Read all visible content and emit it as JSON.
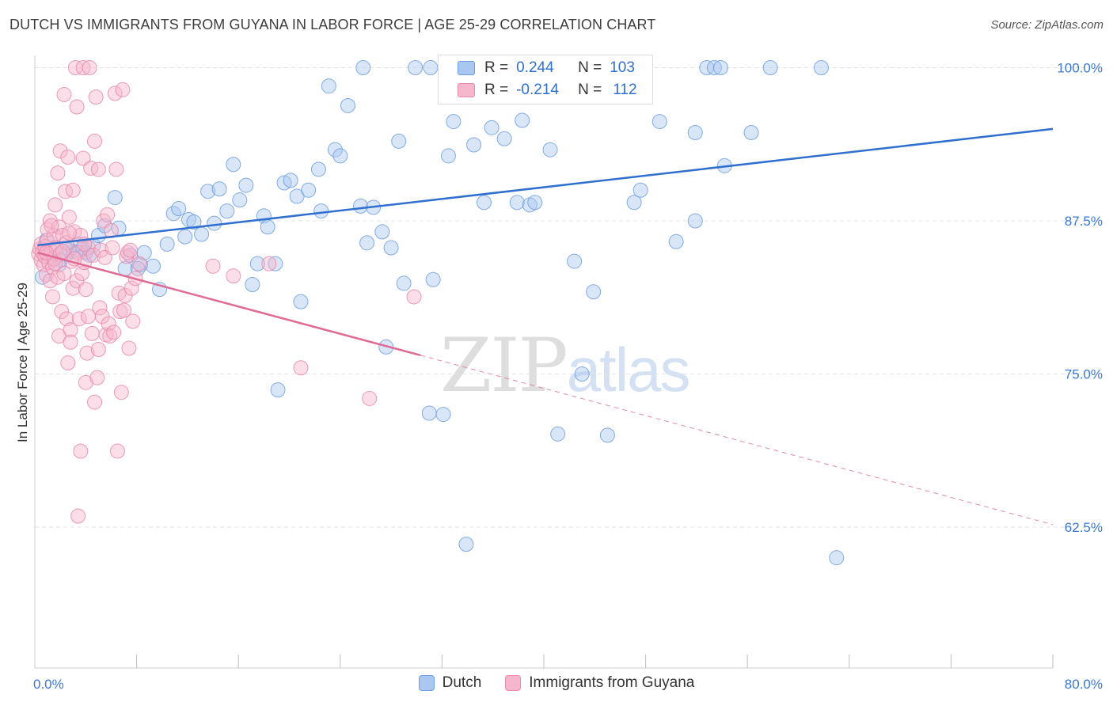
{
  "title": "DUTCH VS IMMIGRANTS FROM GUYANA IN LABOR FORCE | AGE 25-29 CORRELATION CHART",
  "source": "Source: ZipAtlas.com",
  "watermark": {
    "zip": "ZIP",
    "atlas": "atlas"
  },
  "colors": {
    "dutch_fill": "#a9c7f0",
    "dutch_line": "#2f6fd0",
    "guyana_fill": "#f6b6cb",
    "guyana_line": "#e06a93",
    "axis_text_blue": "#3a78d4",
    "grid": "#e3e3e3"
  },
  "legend": {
    "rows": [
      {
        "r_label": "R =",
        "r_value": "0.244",
        "n_label": "N =",
        "n_value": "103"
      },
      {
        "r_label": "R =",
        "r_value": "-0.214",
        "n_label": "N =",
        "n_value": "112"
      }
    ],
    "bottom": [
      "Dutch",
      "Immigrants from Guyana"
    ]
  },
  "chart_data": {
    "type": "scatter",
    "title": "DUTCH VS IMMIGRANTS FROM GUYANA IN LABOR FORCE | AGE 25-29 CORRELATION CHART",
    "xlabel": "",
    "ylabel": "In Labor Force | Age 25-29",
    "xlim": [
      0,
      80
    ],
    "ylim": [
      51,
      101
    ],
    "x_tick_labels": [
      "0.0%",
      "80.0%"
    ],
    "y_ticks": [
      62.5,
      75.0,
      87.5,
      100.0
    ],
    "y_tick_labels": [
      "62.5%",
      "75.0%",
      "87.5%",
      "100.0%"
    ],
    "grid": "horizontal dashed",
    "legend_position": "top-center",
    "series": [
      {
        "name": "Dutch",
        "r": 0.244,
        "n": 103,
        "trend": {
          "x": [
            0.2,
            80
          ],
          "y": [
            85.5,
            95.0
          ],
          "dashed_from_x": null
        },
        "points": [
          [
            0.6,
            82.9
          ],
          [
            1.2,
            84.5
          ],
          [
            1.5,
            85.3
          ],
          [
            2.0,
            84.3
          ],
          [
            2.5,
            84.8
          ],
          [
            3.0,
            85.0
          ],
          [
            3.4,
            85.6
          ],
          [
            3.8,
            85.3
          ],
          [
            4.0,
            84.9
          ],
          [
            4.6,
            85.5
          ],
          [
            5.0,
            86.3
          ],
          [
            5.5,
            87.1
          ],
          [
            6.3,
            89.4
          ],
          [
            7.1,
            83.6
          ],
          [
            7.5,
            84.7
          ],
          [
            8.3,
            83.9
          ],
          [
            8.6,
            84.9
          ],
          [
            9.3,
            83.8
          ],
          [
            9.8,
            81.9
          ],
          [
            10.4,
            85.6
          ],
          [
            10.9,
            88.1
          ],
          [
            11.3,
            88.5
          ],
          [
            12.1,
            87.6
          ],
          [
            12.5,
            87.4
          ],
          [
            13.1,
            86.4
          ],
          [
            13.6,
            89.9
          ],
          [
            14.1,
            87.3
          ],
          [
            14.5,
            90.1
          ],
          [
            15.1,
            88.3
          ],
          [
            15.6,
            92.1
          ],
          [
            16.1,
            89.2
          ],
          [
            16.6,
            90.4
          ],
          [
            17.1,
            82.3
          ],
          [
            17.5,
            84.0
          ],
          [
            18.0,
            87.9
          ],
          [
            18.3,
            87.0
          ],
          [
            18.9,
            84.0
          ],
          [
            19.6,
            90.6
          ],
          [
            20.1,
            90.8
          ],
          [
            20.6,
            89.5
          ],
          [
            20.9,
            80.9
          ],
          [
            21.5,
            90.0
          ],
          [
            22.3,
            91.7
          ],
          [
            22.5,
            88.3
          ],
          [
            23.1,
            98.5
          ],
          [
            23.6,
            93.3
          ],
          [
            24.0,
            92.8
          ],
          [
            24.6,
            96.9
          ],
          [
            25.6,
            88.7
          ],
          [
            25.8,
            100.0
          ],
          [
            26.1,
            85.7
          ],
          [
            26.6,
            88.6
          ],
          [
            27.3,
            86.6
          ],
          [
            27.6,
            77.2
          ],
          [
            28.0,
            85.3
          ],
          [
            28.6,
            94.0
          ],
          [
            29.0,
            82.4
          ],
          [
            29.9,
            100.0
          ],
          [
            31.0,
            71.8
          ],
          [
            31.1,
            100.0
          ],
          [
            31.3,
            82.7
          ],
          [
            32.1,
            71.7
          ],
          [
            32.5,
            92.8
          ],
          [
            32.9,
            95.6
          ],
          [
            33.9,
            61.1
          ],
          [
            34.1,
            100.0
          ],
          [
            34.5,
            93.7
          ],
          [
            35.3,
            89.0
          ],
          [
            35.9,
            95.1
          ],
          [
            36.9,
            94.2
          ],
          [
            37.9,
            89.0
          ],
          [
            38.3,
            95.7
          ],
          [
            38.9,
            88.8
          ],
          [
            39.3,
            89.0
          ],
          [
            40.5,
            93.3
          ],
          [
            41.1,
            70.1
          ],
          [
            42.4,
            84.2
          ],
          [
            43.0,
            75.0
          ],
          [
            43.9,
            81.7
          ],
          [
            45.0,
            70.0
          ],
          [
            46.1,
            100.0
          ],
          [
            47.1,
            89.0
          ],
          [
            47.6,
            90.0
          ],
          [
            49.1,
            95.6
          ],
          [
            50.4,
            85.8
          ],
          [
            51.9,
            94.7
          ],
          [
            51.9,
            87.5
          ],
          [
            52.8,
            100.0
          ],
          [
            53.4,
            100.0
          ],
          [
            53.9,
            100.0
          ],
          [
            54.2,
            92.0
          ],
          [
            56.3,
            94.7
          ],
          [
            57.8,
            100.0
          ],
          [
            61.8,
            100.0
          ],
          [
            63.0,
            60.0
          ],
          [
            0.9,
            85.9
          ],
          [
            1.9,
            83.9
          ],
          [
            2.7,
            85.1
          ],
          [
            4.3,
            84.7
          ],
          [
            6.6,
            86.9
          ],
          [
            8.1,
            83.6
          ],
          [
            11.8,
            86.2
          ],
          [
            19.1,
            73.7
          ]
        ]
      },
      {
        "name": "Immigrants from Guyana",
        "r": -0.214,
        "n": 112,
        "trend": {
          "x": [
            0.2,
            80
          ],
          "y": [
            84.9,
            62.7
          ],
          "dashed_from_x": 30.3
        },
        "points": [
          [
            0.3,
            84.8
          ],
          [
            0.4,
            85.2
          ],
          [
            0.5,
            84.3
          ],
          [
            0.5,
            85.6
          ],
          [
            0.6,
            84.9
          ],
          [
            0.7,
            83.9
          ],
          [
            0.8,
            85.4
          ],
          [
            0.8,
            84.6
          ],
          [
            0.9,
            83.1
          ],
          [
            1.0,
            85.9
          ],
          [
            1.0,
            86.8
          ],
          [
            1.1,
            84.1
          ],
          [
            1.2,
            82.6
          ],
          [
            1.2,
            87.5
          ],
          [
            1.3,
            85.0
          ],
          [
            1.4,
            83.7
          ],
          [
            1.4,
            81.3
          ],
          [
            1.5,
            86.3
          ],
          [
            1.5,
            84.4
          ],
          [
            1.6,
            88.8
          ],
          [
            1.7,
            85.3
          ],
          [
            1.8,
            82.9
          ],
          [
            1.8,
            91.4
          ],
          [
            1.9,
            87.0
          ],
          [
            1.9,
            78.1
          ],
          [
            2.0,
            93.2
          ],
          [
            2.0,
            84.8
          ],
          [
            2.1,
            80.1
          ],
          [
            2.2,
            86.3
          ],
          [
            2.3,
            97.8
          ],
          [
            2.3,
            83.2
          ],
          [
            2.4,
            89.9
          ],
          [
            2.5,
            79.5
          ],
          [
            2.5,
            85.7
          ],
          [
            2.6,
            92.7
          ],
          [
            2.6,
            75.9
          ],
          [
            2.7,
            87.8
          ],
          [
            2.8,
            78.6
          ],
          [
            2.8,
            77.6
          ],
          [
            2.9,
            84.2
          ],
          [
            3.0,
            90.0
          ],
          [
            3.0,
            82.0
          ],
          [
            3.1,
            86.6
          ],
          [
            3.2,
            100.0
          ],
          [
            3.3,
            96.8
          ],
          [
            3.3,
            82.6
          ],
          [
            3.4,
            63.4
          ],
          [
            3.4,
            84.9
          ],
          [
            3.5,
            79.5
          ],
          [
            3.6,
            86.3
          ],
          [
            3.6,
            68.7
          ],
          [
            3.7,
            83.2
          ],
          [
            3.8,
            100.0
          ],
          [
            3.8,
            92.6
          ],
          [
            3.9,
            84.1
          ],
          [
            4.0,
            74.3
          ],
          [
            4.0,
            81.9
          ],
          [
            4.1,
            76.7
          ],
          [
            4.2,
            85.3
          ],
          [
            4.2,
            79.7
          ],
          [
            4.3,
            100.0
          ],
          [
            4.4,
            91.8
          ],
          [
            4.5,
            78.3
          ],
          [
            4.6,
            84.7
          ],
          [
            4.7,
            72.7
          ],
          [
            4.7,
            94.0
          ],
          [
            4.8,
            97.6
          ],
          [
            4.9,
            74.7
          ],
          [
            5.0,
            91.7
          ],
          [
            5.0,
            77.0
          ],
          [
            5.1,
            80.4
          ],
          [
            5.2,
            85.1
          ],
          [
            5.3,
            79.7
          ],
          [
            5.4,
            87.5
          ],
          [
            5.5,
            84.5
          ],
          [
            5.6,
            78.2
          ],
          [
            5.7,
            88.0
          ],
          [
            5.8,
            79.1
          ],
          [
            5.9,
            78.1
          ],
          [
            6.0,
            86.7
          ],
          [
            6.1,
            85.3
          ],
          [
            6.2,
            78.4
          ],
          [
            6.3,
            97.9
          ],
          [
            6.4,
            91.7
          ],
          [
            6.5,
            68.7
          ],
          [
            6.6,
            81.6
          ],
          [
            6.7,
            80.1
          ],
          [
            6.8,
            73.5
          ],
          [
            6.9,
            98.2
          ],
          [
            7.0,
            80.2
          ],
          [
            7.1,
            81.4
          ],
          [
            7.2,
            84.6
          ],
          [
            7.3,
            84.9
          ],
          [
            7.4,
            77.1
          ],
          [
            7.5,
            85.1
          ],
          [
            7.6,
            82.0
          ],
          [
            7.7,
            79.3
          ],
          [
            7.9,
            82.8
          ],
          [
            8.2,
            84.0
          ],
          [
            14.0,
            83.8
          ],
          [
            15.6,
            83.0
          ],
          [
            18.4,
            84.0
          ],
          [
            20.9,
            75.5
          ],
          [
            26.3,
            73.0
          ],
          [
            29.8,
            81.3
          ],
          [
            3.1,
            84.4
          ],
          [
            2.2,
            85.0
          ],
          [
            1.6,
            84.0
          ],
          [
            0.9,
            84.9
          ],
          [
            2.7,
            86.5
          ],
          [
            1.3,
            87.1
          ],
          [
            3.9,
            85.6
          ]
        ]
      }
    ]
  }
}
